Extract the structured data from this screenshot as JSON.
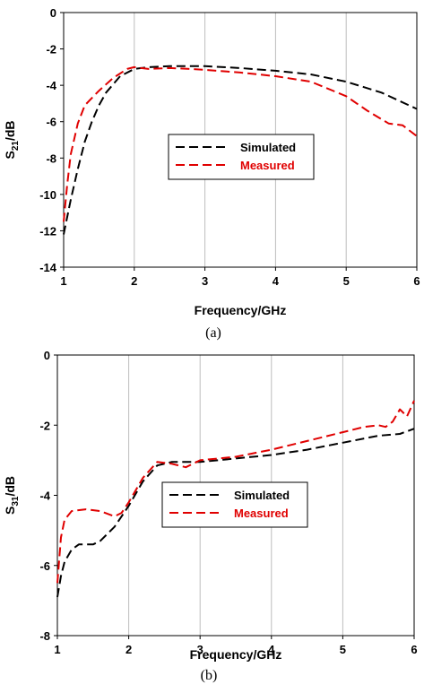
{
  "chart_data": [
    {
      "type": "line",
      "caption": "(a)",
      "xlabel": "Frequency/GHz",
      "ylabel": "S21/dB",
      "ylabel_main": "S",
      "ylabel_sub": "21",
      "ylabel_unit": "/dB",
      "xlim": [
        1,
        6
      ],
      "ylim": [
        -14,
        0
      ],
      "xticks": [
        1,
        2,
        3,
        4,
        5,
        6
      ],
      "yticks": [
        0,
        -2,
        -4,
        -6,
        -8,
        -10,
        -12,
        -14
      ],
      "grid": "vertical",
      "legend_position": "center-right",
      "series": [
        {
          "name": "Simulated",
          "color": "#000000",
          "style": "dashed",
          "points": [
            [
              1,
              -12.2
            ],
            [
              1.1,
              -10.3
            ],
            [
              1.2,
              -8.6
            ],
            [
              1.3,
              -7.1
            ],
            [
              1.4,
              -6.0
            ],
            [
              1.5,
              -5.1
            ],
            [
              1.6,
              -4.4
            ],
            [
              1.8,
              -3.5
            ],
            [
              2.0,
              -3.1
            ],
            [
              2.2,
              -3.0
            ],
            [
              2.5,
              -2.95
            ],
            [
              3.0,
              -2.95
            ],
            [
              3.5,
              -3.05
            ],
            [
              4.0,
              -3.2
            ],
            [
              4.5,
              -3.4
            ],
            [
              5.0,
              -3.8
            ],
            [
              5.5,
              -4.4
            ],
            [
              6.0,
              -5.3
            ]
          ]
        },
        {
          "name": "Measured",
          "color": "#e00000",
          "style": "dashed",
          "points": [
            [
              1,
              -11.5
            ],
            [
              1.05,
              -9.5
            ],
            [
              1.1,
              -7.8
            ],
            [
              1.2,
              -6.1
            ],
            [
              1.3,
              -5.1
            ],
            [
              1.4,
              -4.7
            ],
            [
              1.5,
              -4.3
            ],
            [
              1.7,
              -3.6
            ],
            [
              1.9,
              -3.1
            ],
            [
              2.0,
              -3.0
            ],
            [
              2.2,
              -3.1
            ],
            [
              2.5,
              -3.05
            ],
            [
              2.8,
              -3.1
            ],
            [
              3.0,
              -3.15
            ],
            [
              3.5,
              -3.3
            ],
            [
              4.0,
              -3.5
            ],
            [
              4.5,
              -3.8
            ],
            [
              5.0,
              -4.6
            ],
            [
              5.3,
              -5.4
            ],
            [
              5.6,
              -6.1
            ],
            [
              5.8,
              -6.2
            ],
            [
              6.0,
              -6.8
            ]
          ]
        }
      ]
    },
    {
      "type": "line",
      "caption": "(b)",
      "xlabel": "Frequency/GHz",
      "ylabel": "S31/dB",
      "ylabel_main": "S",
      "ylabel_sub": "31",
      "ylabel_unit": "/dB",
      "xlim": [
        1,
        6
      ],
      "ylim": [
        -8,
        0
      ],
      "xticks": [
        1,
        2,
        3,
        4,
        5,
        6
      ],
      "yticks": [
        0,
        -2,
        -4,
        -6,
        -8
      ],
      "grid": "vertical",
      "legend_position": "center",
      "series": [
        {
          "name": "Simulated",
          "color": "#000000",
          "style": "dashed",
          "points": [
            [
              1,
              -6.9
            ],
            [
              1.05,
              -6.3
            ],
            [
              1.1,
              -5.9
            ],
            [
              1.2,
              -5.55
            ],
            [
              1.3,
              -5.4
            ],
            [
              1.5,
              -5.4
            ],
            [
              1.6,
              -5.3
            ],
            [
              1.8,
              -4.9
            ],
            [
              2.0,
              -4.3
            ],
            [
              2.2,
              -3.6
            ],
            [
              2.4,
              -3.15
            ],
            [
              2.6,
              -3.05
            ],
            [
              3.0,
              -3.05
            ],
            [
              3.5,
              -2.95
            ],
            [
              4.0,
              -2.85
            ],
            [
              4.5,
              -2.7
            ],
            [
              5.0,
              -2.5
            ],
            [
              5.5,
              -2.3
            ],
            [
              5.8,
              -2.25
            ],
            [
              6.0,
              -2.1
            ]
          ]
        },
        {
          "name": "Measured",
          "color": "#e00000",
          "style": "dashed",
          "points": [
            [
              1,
              -6.5
            ],
            [
              1.05,
              -5.2
            ],
            [
              1.1,
              -4.7
            ],
            [
              1.2,
              -4.45
            ],
            [
              1.4,
              -4.4
            ],
            [
              1.6,
              -4.45
            ],
            [
              1.8,
              -4.6
            ],
            [
              1.9,
              -4.5
            ],
            [
              2.0,
              -4.2
            ],
            [
              2.2,
              -3.5
            ],
            [
              2.4,
              -3.05
            ],
            [
              2.6,
              -3.1
            ],
            [
              2.8,
              -3.2
            ],
            [
              3.0,
              -3.0
            ],
            [
              3.5,
              -2.9
            ],
            [
              4.0,
              -2.7
            ],
            [
              4.5,
              -2.45
            ],
            [
              5.0,
              -2.2
            ],
            [
              5.3,
              -2.05
            ],
            [
              5.5,
              -2.0
            ],
            [
              5.6,
              -2.05
            ],
            [
              5.7,
              -1.9
            ],
            [
              5.8,
              -1.55
            ],
            [
              5.9,
              -1.75
            ],
            [
              6.0,
              -1.3
            ]
          ]
        }
      ]
    }
  ]
}
